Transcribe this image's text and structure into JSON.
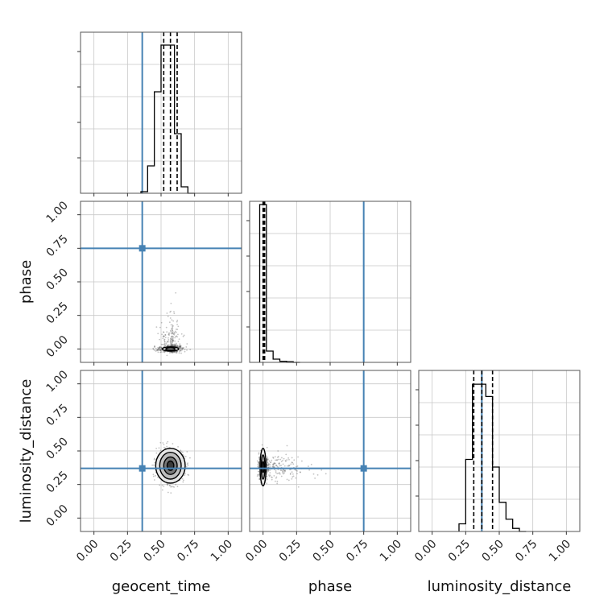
{
  "chart_data": {
    "type": "corner",
    "parameters": [
      "geocent_time",
      "phase",
      "luminosity_distance"
    ],
    "axis_range": [
      -0.1,
      1.1
    ],
    "tick_values": [
      0.0,
      0.25,
      0.5,
      0.75,
      1.0
    ],
    "tick_labels": [
      "0.00",
      "0.25",
      "0.50",
      "0.75",
      "1.00"
    ],
    "grid": true,
    "colors": {
      "truth": "#4682b4",
      "histogram": "#000000",
      "points": "#555555"
    },
    "truths": {
      "geocent_time": 0.36,
      "phase": 0.75,
      "luminosity_distance": 0.37
    },
    "diagonal": [
      {
        "name": "geocent_time",
        "bin_edges": [
          0.35,
          0.4,
          0.45,
          0.5,
          0.55,
          0.6,
          0.65,
          0.7,
          0.75
        ],
        "counts": [
          0.01,
          0.17,
          0.63,
          0.92,
          0.92,
          0.37,
          0.04,
          0.0
        ],
        "ymax": 1.0,
        "quantiles": [
          0.52,
          0.57,
          0.62
        ]
      },
      {
        "name": "phase",
        "bin_edges": [
          -0.025,
          0.025,
          0.075,
          0.125,
          0.175,
          0.225,
          0.275
        ],
        "counts": [
          0.98,
          0.07,
          0.02,
          0.007,
          0.004,
          0.0
        ],
        "ymax": 1.0,
        "quantiles": [
          0.0,
          0.005,
          0.012
        ]
      },
      {
        "name": "luminosity_distance",
        "bin_edges": [
          0.2,
          0.25,
          0.3,
          0.35,
          0.4,
          0.45,
          0.5,
          0.55,
          0.6,
          0.65,
          0.7
        ],
        "counts": [
          0.05,
          0.47,
          0.96,
          0.96,
          0.88,
          0.42,
          0.19,
          0.08,
          0.02,
          0.0
        ],
        "ymax": 1.05,
        "quantiles": [
          0.31,
          0.37,
          0.45
        ]
      }
    ],
    "density": [
      {
        "x": "geocent_time",
        "y": "phase",
        "center": [
          0.57,
          0.0
        ],
        "spread": [
          0.045,
          0.012
        ],
        "tail": [
          0.03,
          0.2
        ],
        "contours": [
          {
            "rx": 0.06,
            "ry": 0.016,
            "fill": "#d9d9d9"
          },
          {
            "rx": 0.035,
            "ry": 0.009,
            "fill": "#8c8c8c"
          }
        ]
      },
      {
        "x": "geocent_time",
        "y": "luminosity_distance",
        "center": [
          0.57,
          0.39
        ],
        "spread": [
          0.05,
          0.06
        ],
        "tail": [
          0.0,
          0.0
        ],
        "contours": [
          {
            "rx": 0.11,
            "ry": 0.13,
            "fill": "#e6e6e6"
          },
          {
            "rx": 0.08,
            "ry": 0.1,
            "fill": "#bdbdbd"
          },
          {
            "rx": 0.05,
            "ry": 0.065,
            "fill": "#7a7a7a"
          },
          {
            "rx": 0.025,
            "ry": 0.035,
            "fill": "#3a3a3a"
          }
        ]
      },
      {
        "x": "phase",
        "y": "luminosity_distance",
        "center": [
          0.0,
          0.38
        ],
        "spread": [
          0.015,
          0.05
        ],
        "tail": [
          0.25,
          0.0
        ],
        "contours": [
          {
            "rx": 0.022,
            "ry": 0.14,
            "fill": "#e6e6e6"
          },
          {
            "rx": 0.014,
            "ry": 0.09,
            "fill": "#9e9e9e"
          },
          {
            "rx": 0.008,
            "ry": 0.04,
            "fill": "#333333"
          }
        ]
      }
    ]
  }
}
